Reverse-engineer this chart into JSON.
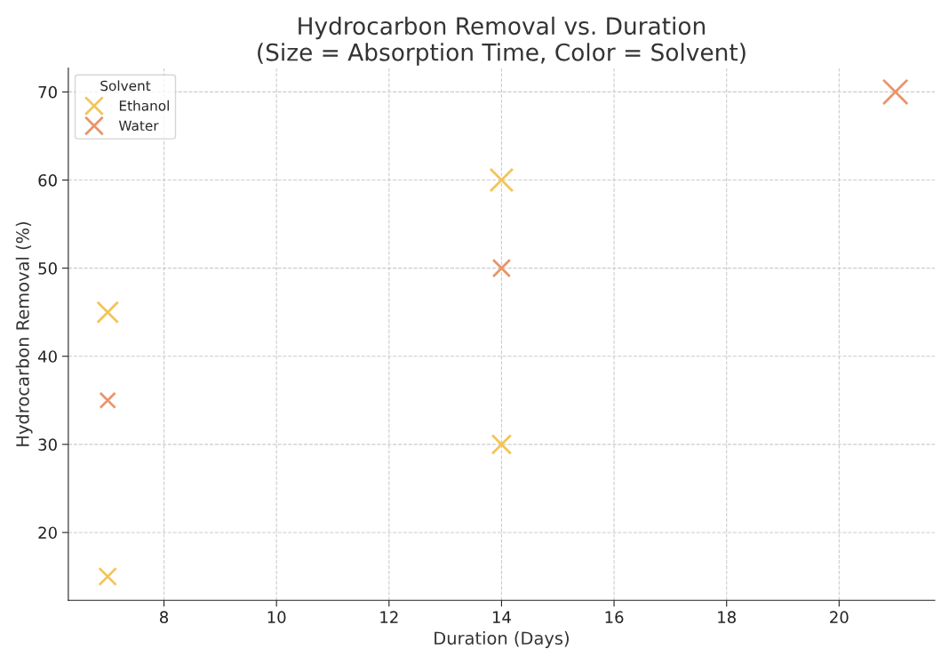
{
  "chart_data": {
    "type": "bubble",
    "title": "Hydrocarbon Removal vs. Duration\n(Size = Absorption Time, Color = Solvent)",
    "xlabel": "Duration (Days)",
    "ylabel": "Hydrocarbon Removal (%)",
    "legend_title": "Solvent",
    "legend": "top left",
    "grid": true,
    "marker": "cross",
    "xlim": [
      6.3,
      21.7
    ],
    "ylim": [
      12.3,
      72.7
    ],
    "xticks": [
      8,
      10,
      12,
      14,
      16,
      18,
      20
    ],
    "yticks": [
      20,
      30,
      40,
      50,
      60,
      70
    ],
    "series": [
      {
        "name": "Ethanol",
        "color": "#f2c45a",
        "x": [
          7,
          7,
          14,
          14
        ],
        "values": [
          45,
          15,
          60,
          30
        ],
        "sizes": [
          0.72,
          0.48,
          0.85,
          0.59
        ]
      },
      {
        "name": "Water",
        "color": "#e8956b",
        "x": [
          7,
          14,
          21
        ],
        "values": [
          35,
          50,
          70
        ],
        "sizes": [
          0.38,
          0.48,
          1
        ]
      }
    ]
  }
}
